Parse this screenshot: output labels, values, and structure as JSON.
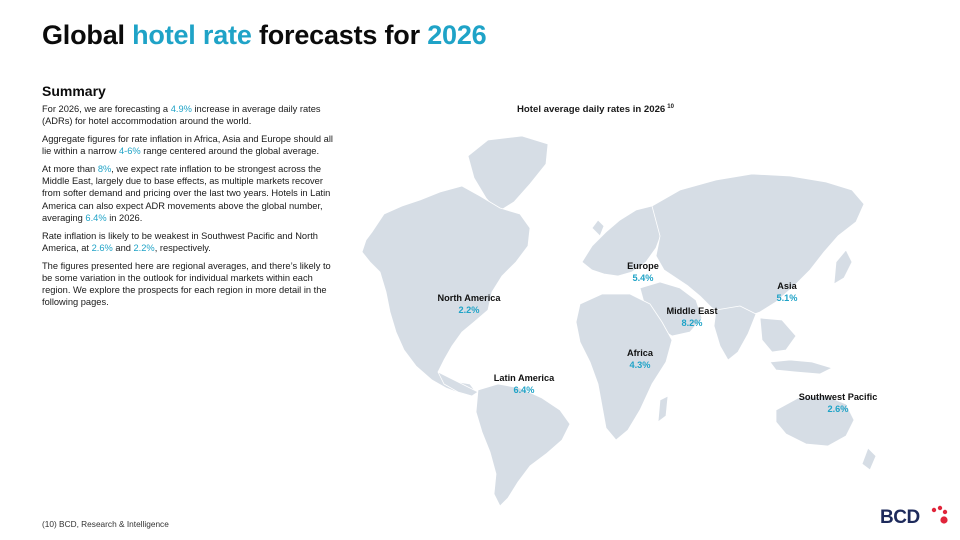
{
  "title": {
    "part1": "Global ",
    "part2": "hotel rate",
    "part3": " forecasts for ",
    "part4": "2026"
  },
  "summary": {
    "heading": "Summary",
    "p1": {
      "a": "For 2026, we are forecasting a ",
      "b": "4.9%",
      "c": " increase in average daily rates (ADRs) for hotel accommodation around the world."
    },
    "p2": {
      "a": "Aggregate figures for rate inflation in Africa, Asia and Europe should all lie within a narrow ",
      "b": "4-6%",
      "c": " range centered around the global average."
    },
    "p3": {
      "a": "At more than ",
      "b": "8%",
      "c": ", we expect rate inflation to be strongest across the Middle East, largely due to base effects, as multiple markets recover from softer demand and pricing over the last two years. Hotels in Latin America can also expect ADR movements above the global number, averaging ",
      "d": "6.4%",
      "e": " in 2026."
    },
    "p4": {
      "a": "Rate inflation is likely to be weakest in Southwest Pacific and North America, at ",
      "b": "2.6%",
      "c": " and ",
      "d": "2.2%",
      "e": ", respectively."
    },
    "p5": "The figures presented here are regional averages, and there’s likely to be some variation in the outlook for individual markets within each region. We explore the prospects for each region in more detail in the following pages."
  },
  "map": {
    "title": "Hotel average daily rates in 2026",
    "footnote_ref": "10",
    "regions": [
      {
        "name": "North America",
        "rate": "2.2%"
      },
      {
        "name": "Europe",
        "rate": "5.4%"
      },
      {
        "name": "Asia",
        "rate": "5.1%"
      },
      {
        "name": "Middle East",
        "rate": "8.2%"
      },
      {
        "name": "Africa",
        "rate": "4.3%"
      },
      {
        "name": "Latin America",
        "rate": "6.4%"
      },
      {
        "name": "Southwest Pacific",
        "rate": "2.6%"
      }
    ]
  },
  "footnote": "(10) BCD, Research & Intelligence",
  "logo": {
    "text": "BCD"
  },
  "colors": {
    "accent": "#1fa3c7",
    "land": "#d6dde5",
    "brand_navy": "#1d2a5b",
    "brand_red": "#e0243a"
  }
}
